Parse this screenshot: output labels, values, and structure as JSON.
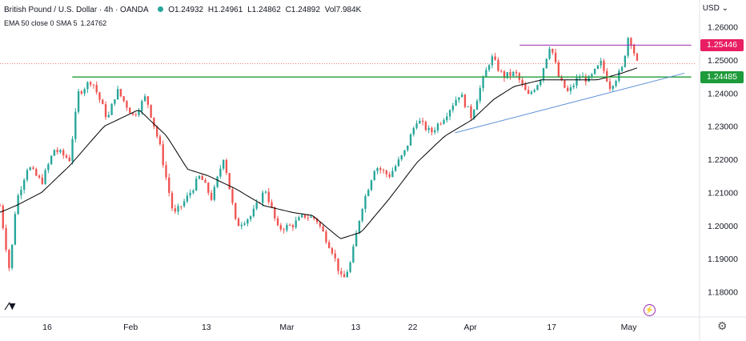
{
  "header": {
    "symbol": "British Pound / U.S. Dollar · 4h · OANDA",
    "open": "O1.24932",
    "high": "H1.24961",
    "low": "L1.24862",
    "close": "C1.24892",
    "volume": "Vol7.984K"
  },
  "indicators": {
    "label": "EMA 50 close 0 SMA 5",
    "value": "1.24762"
  },
  "currency": "USD",
  "price_tags": [
    {
      "label": "1.25446",
      "color": "#e91e63"
    },
    {
      "label": "1.24485",
      "color": "#1e9b3a"
    }
  ],
  "colors": {
    "up": "#26a69a",
    "down": "#ef5350",
    "ema": "#000000",
    "support": "#1e9b3a",
    "resistance": "#9c27b0",
    "trendline": "#5b8fd6"
  },
  "icons": {
    "logo": "tradingview-logo-icon",
    "settings": "gear-icon",
    "flash": "lightning-icon"
  },
  "chart_data": {
    "type": "candlestick",
    "symbol": "GBP/USD",
    "timeframe": "4h",
    "y_ticks": [
      "1.26000",
      "1.25000",
      "1.24000",
      "1.23000",
      "1.22000",
      "1.21000",
      "1.20000",
      "1.19000",
      "1.18000"
    ],
    "ylim": [
      1.1775,
      1.2635
    ],
    "x_ticks": [
      {
        "label": "16",
        "t": 0.068
      },
      {
        "label": "Feb",
        "t": 0.188
      },
      {
        "label": "13",
        "t": 0.297
      },
      {
        "label": "Mar",
        "t": 0.413
      },
      {
        "label": "13",
        "t": 0.512
      },
      {
        "label": "22",
        "t": 0.594
      },
      {
        "label": "Apr",
        "t": 0.677
      },
      {
        "label": "17",
        "t": 0.794
      },
      {
        "label": "May",
        "t": 0.905
      }
    ],
    "x_domain": [
      0,
      1
    ],
    "series_anchors": [
      [
        0.0,
        1.206
      ],
      [
        0.014,
        1.186
      ],
      [
        0.023,
        1.207
      ],
      [
        0.04,
        1.218
      ],
      [
        0.06,
        1.213
      ],
      [
        0.078,
        1.223
      ],
      [
        0.1,
        1.22
      ],
      [
        0.113,
        1.24
      ],
      [
        0.132,
        1.244
      ],
      [
        0.155,
        1.232
      ],
      [
        0.168,
        1.241
      ],
      [
        0.192,
        1.233
      ],
      [
        0.21,
        1.239
      ],
      [
        0.23,
        1.224
      ],
      [
        0.25,
        1.203
      ],
      [
        0.268,
        1.208
      ],
      [
        0.288,
        1.215
      ],
      [
        0.305,
        1.208
      ],
      [
        0.322,
        1.221
      ],
      [
        0.34,
        1.2
      ],
      [
        0.362,
        1.203
      ],
      [
        0.382,
        1.211
      ],
      [
        0.4,
        1.199
      ],
      [
        0.42,
        1.2
      ],
      [
        0.438,
        1.203
      ],
      [
        0.455,
        1.202
      ],
      [
        0.478,
        1.1925
      ],
      [
        0.493,
        1.183
      ],
      [
        0.505,
        1.189
      ],
      [
        0.52,
        1.205
      ],
      [
        0.54,
        1.218
      ],
      [
        0.56,
        1.215
      ],
      [
        0.582,
        1.222
      ],
      [
        0.6,
        1.232
      ],
      [
        0.62,
        1.228
      ],
      [
        0.64,
        1.233
      ],
      [
        0.662,
        1.24
      ],
      [
        0.678,
        1.233
      ],
      [
        0.692,
        1.242
      ],
      [
        0.707,
        1.251
      ],
      [
        0.724,
        1.245
      ],
      [
        0.742,
        1.246
      ],
      [
        0.76,
        1.239
      ],
      [
        0.777,
        1.244
      ],
      [
        0.792,
        1.255
      ],
      [
        0.805,
        1.244
      ],
      [
        0.818,
        1.24
      ],
      [
        0.833,
        1.245
      ],
      [
        0.848,
        1.244
      ],
      [
        0.865,
        1.249
      ],
      [
        0.878,
        1.242
      ],
      [
        0.895,
        1.247
      ],
      [
        0.905,
        1.258
      ],
      [
        0.917,
        1.249
      ]
    ],
    "ema50_anchors": [
      [
        0.0,
        1.204
      ],
      [
        0.023,
        1.206
      ],
      [
        0.06,
        1.21
      ],
      [
        0.1,
        1.218
      ],
      [
        0.15,
        1.23
      ],
      [
        0.2,
        1.235
      ],
      [
        0.24,
        1.227
      ],
      [
        0.27,
        1.217
      ],
      [
        0.3,
        1.215
      ],
      [
        0.34,
        1.211
      ],
      [
        0.38,
        1.206
      ],
      [
        0.42,
        1.204
      ],
      [
        0.45,
        1.203
      ],
      [
        0.49,
        1.196
      ],
      [
        0.52,
        1.198
      ],
      [
        0.56,
        1.208
      ],
      [
        0.6,
        1.219
      ],
      [
        0.64,
        1.227
      ],
      [
        0.68,
        1.232
      ],
      [
        0.71,
        1.238
      ],
      [
        0.74,
        1.242
      ],
      [
        0.78,
        1.244
      ],
      [
        0.82,
        1.244
      ],
      [
        0.86,
        1.244
      ],
      [
        0.895,
        1.246
      ],
      [
        0.917,
        1.2476
      ]
    ],
    "support_line": {
      "value": 1.24485,
      "t_start": 0.104,
      "t_end": 0.995
    },
    "resistance_line": {
      "value": 1.25446,
      "t_start": 0.748,
      "t_end": 0.995
    },
    "dotted_price_line": {
      "value": 1.24892
    },
    "trendline": {
      "from": [
        0.655,
        1.228
      ],
      "to": [
        0.985,
        1.246
      ]
    }
  }
}
